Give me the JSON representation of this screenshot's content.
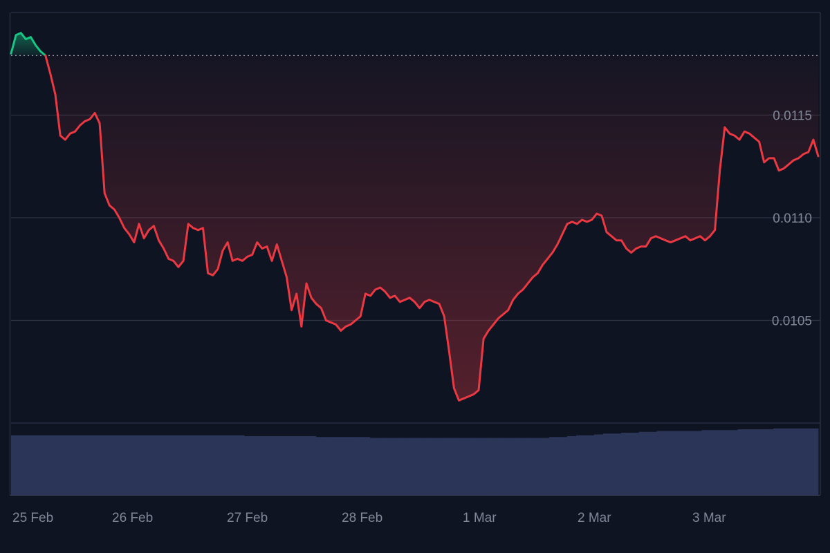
{
  "chart_data": {
    "type": "area",
    "y_axis": {
      "ticks": [
        "0.0105",
        "0.0110",
        "0.0115"
      ],
      "range": [
        0.01,
        0.012
      ]
    },
    "x_axis": {
      "ticks": [
        "25 Feb",
        "26 Feb",
        "27 Feb",
        "28 Feb",
        "1 Mar",
        "2 Mar",
        "3 Mar"
      ]
    },
    "reference_price": 0.01179,
    "grid": true,
    "colors": {
      "up": "#16c784",
      "down": "#ea3943",
      "volume": "#2a3557",
      "grid": "#2c3345",
      "background": "#0f1422"
    },
    "series": [
      {
        "values": [
          0.0118,
          0.01189,
          0.0119,
          0.01187,
          0.01188,
          0.01184,
          0.01181,
          0.01179,
          0.0117,
          0.0116,
          0.0114,
          0.01138,
          0.01141,
          0.01142,
          0.01145,
          0.01147,
          0.01148,
          0.01151,
          0.01146,
          0.01112,
          0.01106,
          0.01104,
          0.011,
          0.01095,
          0.01092,
          0.01088,
          0.01097,
          0.0109,
          0.01094,
          0.01096,
          0.01089,
          0.01085,
          0.0108,
          0.01079,
          0.01076,
          0.01079,
          0.01097,
          0.01095,
          0.01094,
          0.01095,
          0.01073,
          0.01072,
          0.01075,
          0.01084,
          0.01088,
          0.01079,
          0.0108,
          0.01079,
          0.01081,
          0.01082,
          0.01088,
          0.01085,
          0.01086,
          0.01079,
          0.01087,
          0.01079,
          0.01071,
          0.01055,
          0.01063,
          0.01047,
          0.01068,
          0.01061,
          0.01058,
          0.01056,
          0.0105,
          0.01049,
          0.01048,
          0.01045,
          0.01047,
          0.01048,
          0.0105,
          0.01052,
          0.01063,
          0.01062,
          0.01065,
          0.01066,
          0.01064,
          0.01061,
          0.01062,
          0.01059,
          0.0106,
          0.01061,
          0.01059,
          0.01056,
          0.01059,
          0.0106,
          0.01059,
          0.01058,
          0.01052,
          0.01035,
          0.01017,
          0.01011,
          0.01012,
          0.01013,
          0.01014,
          0.01016,
          0.01041,
          0.01045,
          0.01048,
          0.01051,
          0.01053,
          0.01055,
          0.0106,
          0.01063,
          0.01065,
          0.01068,
          0.01071,
          0.01073,
          0.01077,
          0.0108,
          0.01083,
          0.01087,
          0.01092,
          0.01097,
          0.01098,
          0.01097,
          0.01099,
          0.01098,
          0.01099,
          0.01102,
          0.01101,
          0.01093,
          0.01091,
          0.01089,
          0.01089,
          0.01085,
          0.01083,
          0.01085,
          0.01086,
          0.01086,
          0.0109,
          0.01091,
          0.0109,
          0.01089,
          0.01088,
          0.01089,
          0.0109,
          0.01091,
          0.01089,
          0.0109,
          0.01091,
          0.01089,
          0.01091,
          0.01094,
          0.01123,
          0.01144,
          0.01141,
          0.0114,
          0.01138,
          0.01142,
          0.01141,
          0.01139,
          0.01137,
          0.01127,
          0.01129,
          0.01129,
          0.01123,
          0.01124,
          0.01126,
          0.01128,
          0.01129,
          0.01131,
          0.01132,
          0.01138,
          0.0113
        ]
      }
    ],
    "volume": {
      "values": [
        0.69,
        0.69,
        0.69,
        0.69,
        0.69,
        0.69,
        0.69,
        0.69,
        0.69,
        0.69,
        0.69,
        0.69,
        0.69,
        0.69,
        0.69,
        0.69,
        0.69,
        0.69,
        0.69,
        0.69,
        0.69,
        0.69,
        0.69,
        0.69,
        0.69,
        0.69,
        0.68,
        0.68,
        0.68,
        0.68,
        0.68,
        0.68,
        0.68,
        0.68,
        0.67,
        0.67,
        0.67,
        0.67,
        0.67,
        0.67,
        0.66,
        0.66,
        0.66,
        0.66,
        0.66,
        0.66,
        0.66,
        0.66,
        0.66,
        0.66,
        0.66,
        0.66,
        0.66,
        0.66,
        0.66,
        0.66,
        0.66,
        0.66,
        0.66,
        0.66,
        0.67,
        0.67,
        0.68,
        0.69,
        0.69,
        0.7,
        0.71,
        0.71,
        0.72,
        0.72,
        0.73,
        0.73,
        0.74,
        0.74,
        0.74,
        0.74,
        0.74,
        0.75,
        0.75,
        0.75,
        0.75,
        0.76,
        0.76,
        0.76,
        0.76,
        0.77,
        0.77,
        0.77,
        0.77,
        0.77
      ]
    }
  }
}
